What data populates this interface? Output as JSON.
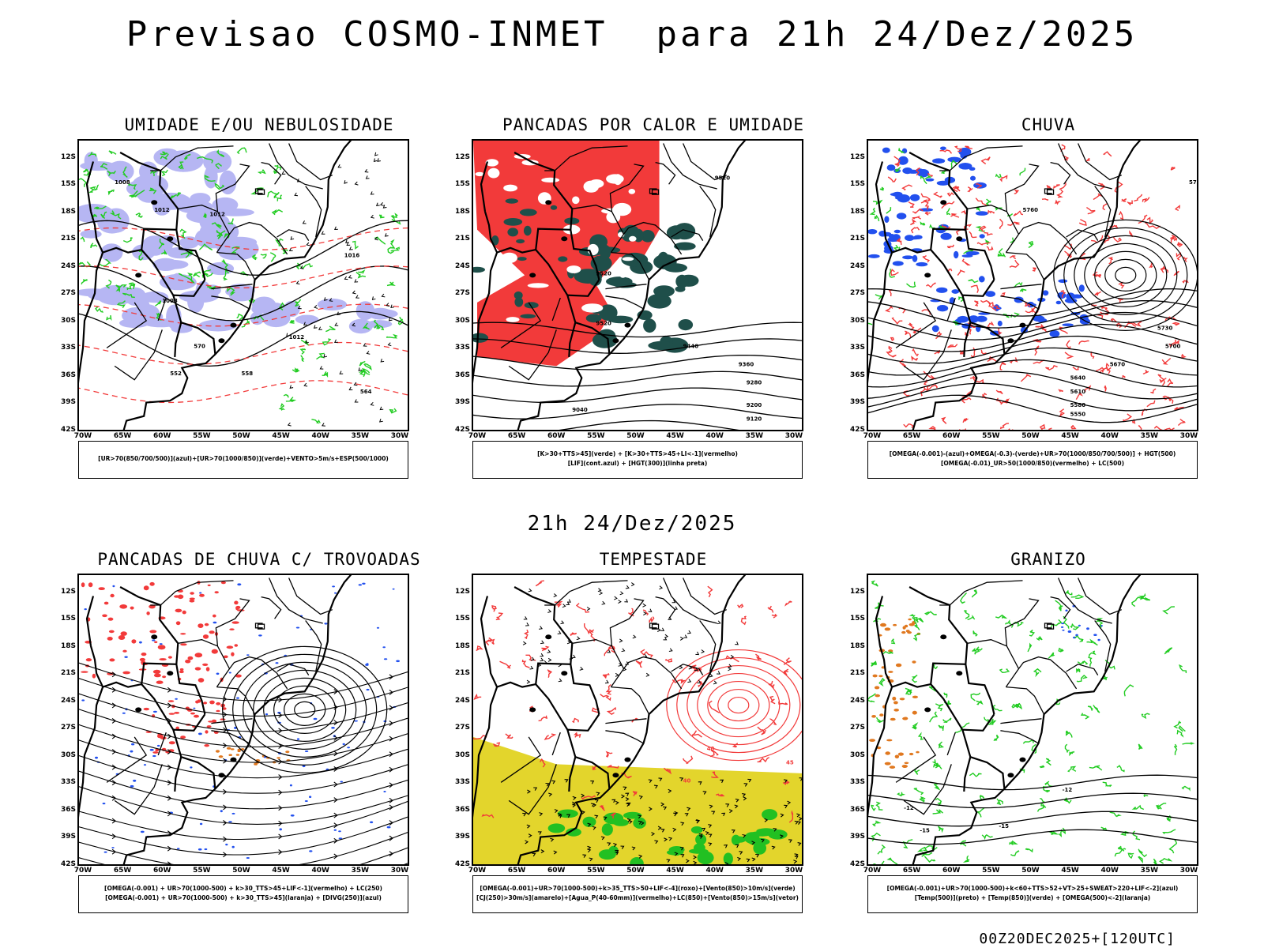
{
  "title": "Previsao COSMO-INMET  para 21h 24/Dez/2025",
  "mid_label": "21h 24/Dez/2025",
  "footer": "00Z20DEC2025+[120UTC]",
  "axes": {
    "lat_labels": [
      "12S",
      "15S",
      "18S",
      "21S",
      "24S",
      "27S",
      "30S",
      "33S",
      "36S",
      "39S",
      "42S"
    ],
    "lon_labels": [
      "70W",
      "65W",
      "60W",
      "55W",
      "50W",
      "45W",
      "40W",
      "35W",
      "30W"
    ]
  },
  "colors": {
    "red": "#f23a3a",
    "green": "#22cc22",
    "blue": "#2250ee",
    "lavender": "#aaaaf2",
    "darkteal": "#1f4f4a",
    "yellow": "#e3d52c",
    "orange": "#e0781f"
  },
  "panels": [
    {
      "title": "UMIDADE E/OU NEBULOSIDADE",
      "legend": [
        "[UR>70(850/700/500)](azul)+[UR>70(1000/850)](verde)+VENTO>5m/s+ESP(500/1000)"
      ],
      "contour_labels": [
        "1008",
        "1012",
        "1012",
        "1016",
        "1012",
        "1008",
        "552",
        "558",
        "564",
        "570"
      ]
    },
    {
      "title": "PANCADAS POR CALOR E UMIDADE",
      "legend": [
        "[K>30+TTS>45](verde) + [K>30+TTS>45+LI<-1](vermelho)",
        "[LIF](cont.azul) + [HGT(300)](linha preta)"
      ],
      "contour_labels": [
        "9520",
        "9520",
        "9520",
        "9440",
        "9360",
        "9280",
        "9200",
        "9120",
        "9040"
      ]
    },
    {
      "title": "CHUVA",
      "legend": [
        "[OMEGA(-0.001)-(azul)+OMEGA(-0.3)-(verde)+UR>70(1000/850/700/500)] + HGT(500)",
        "[OMEGA(-0.01)_UR>50(1000/850)(vermelho) + LC(500)"
      ],
      "contour_labels": [
        "5760",
        "5760",
        "5730",
        "5700",
        "5670",
        "5640",
        "5610",
        "5580",
        "5550"
      ]
    },
    {
      "title": "PANCADAS DE CHUVA C/ TROVOADAS",
      "legend": [
        "[OMEGA(-0.001) + UR>70(1000-500) + k>30_TTS>45+LIF<-1](vermelho) + LC(250)",
        "[OMEGA(-0.001) + UR>70(1000-500) + k>30_TTS>45](laranja) + [DIVG(250)](azul)"
      ],
      "contour_labels": []
    },
    {
      "title": "TEMPESTADE",
      "legend": [
        "[OMEGA(-0.001)+UR>70(1000-500)+k>35_TTS>50+LIF<-4](roxo)+[Vento(850)>10m/s](verde)",
        "[CJ(250)>30m/s](amarelo)+[Agua_P(40-60mm)](vermelho)+LC(850)+[Vento(850)>15m/s](vetor)"
      ],
      "contour_labels": [
        "40",
        "40",
        "45"
      ]
    },
    {
      "title": "GRANIZO",
      "legend": [
        "[OMEGA(-0.001)+UR>70(1000-500)+k<60+TTS>52+VT>25+SWEAT>220+LIF<-2](azul)",
        "[Temp(500)](preto) + [Temp(850)](verde) + [OMEGA(500)<-2](laranja)"
      ],
      "contour_labels": [
        "-12",
        "-12",
        "-15",
        "-15"
      ]
    }
  ]
}
